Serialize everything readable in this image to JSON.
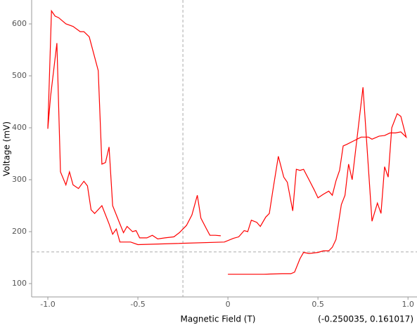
{
  "chart_data": {
    "type": "line",
    "xlabel": "Magnetic Field (T)",
    "ylabel": "Voltage (mV)",
    "color": "#ff0000",
    "x": [
      0,
      0.1,
      0.2,
      0.3,
      0.35,
      0.37,
      0.4,
      0.42,
      0.45,
      0.5,
      0.53,
      0.56,
      0.58,
      0.6,
      0.63,
      0.65,
      0.67,
      0.69,
      0.75,
      0.8,
      0.83,
      0.85,
      0.87,
      0.89,
      0.91,
      0.94,
      0.96,
      0.99,
      0.96,
      0.93,
      0.9,
      0.87,
      0.84,
      0.8,
      0.78,
      0.74,
      0.7,
      0.66,
      0.64,
      0.62,
      0.6,
      0.58,
      0.56,
      0.53,
      0.5,
      0.48,
      0.45,
      0.42,
      0.4,
      0.38,
      0.36,
      0.33,
      0.31,
      0.28,
      0.25,
      0.23,
      0.21,
      0.18,
      0.16,
      0.13,
      0.11,
      0.09,
      0.06,
      0.03,
      -0.02,
      -0.5,
      -0.54,
      -0.6,
      -0.62,
      -0.64,
      -0.66,
      -0.7,
      -0.74,
      -0.76,
      -0.78,
      -0.8,
      -0.83,
      -0.86,
      -0.88,
      -0.9,
      -0.93,
      -0.95,
      -0.985,
      -1.0,
      -0.98,
      -0.96,
      -0.94,
      -0.9,
      -0.86,
      -0.82,
      -0.8,
      -0.77,
      -0.72,
      -0.7,
      -0.68,
      -0.66,
      -0.64,
      -0.6,
      -0.58,
      -0.56,
      -0.53,
      -0.51,
      -0.49,
      -0.45,
      -0.42,
      -0.39,
      -0.35,
      -0.3,
      -0.27,
      -0.25,
      -0.23,
      -0.2,
      -0.17,
      -0.15,
      -0.12,
      -0.1,
      -0.07,
      -0.04
    ],
    "values": [
      118,
      118,
      118,
      119,
      119,
      122,
      148,
      160,
      158,
      160,
      163,
      163,
      170,
      185,
      252,
      270,
      330,
      300,
      478,
      220,
      255,
      235,
      325,
      305,
      400,
      427,
      422,
      382,
      392,
      390,
      390,
      385,
      384,
      378,
      382,
      382,
      375,
      368,
      365,
      318,
      298,
      270,
      278,
      272,
      265,
      280,
      300,
      320,
      318,
      320,
      240,
      295,
      305,
      345,
      280,
      235,
      228,
      210,
      218,
      222,
      200,
      202,
      190,
      187,
      180,
      175,
      180,
      180,
      205,
      195,
      215,
      250,
      235,
      242,
      288,
      297,
      283,
      290,
      315,
      290,
      315,
      563,
      460,
      398,
      625,
      615,
      612,
      600,
      595,
      585,
      585,
      575,
      510,
      330,
      333,
      363,
      250,
      215,
      198,
      210,
      200,
      202,
      188,
      188,
      193,
      186,
      188,
      190,
      198,
      205,
      212,
      232,
      270,
      226,
      206,
      193,
      193,
      192
    ],
    "xlim": [
      -1.09,
      1.05
    ],
    "ylim": [
      74.3,
      646
    ],
    "xticks": [
      {
        "value": -1,
        "label": "-1.0"
      },
      -0.5,
      0,
      0.5,
      {
        "value": 1,
        "label": "1.0"
      }
    ],
    "yticks": [
      100,
      200,
      300,
      400,
      500,
      600
    ],
    "crosshair_x": -0.250035,
    "crosshair_y": 161.017,
    "crosshair_label": "(-0.250035, 0.161017)"
  }
}
